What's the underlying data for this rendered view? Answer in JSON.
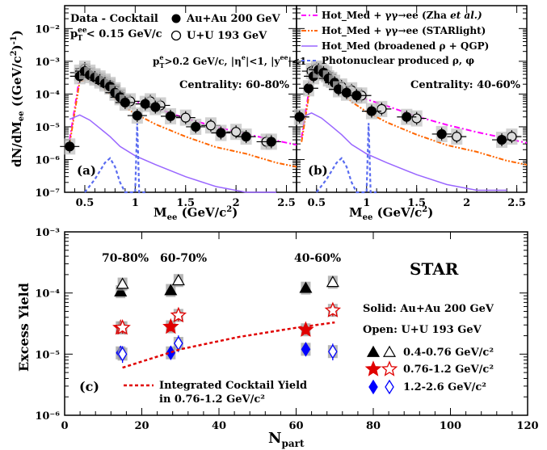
{
  "chart_data": [
    {
      "type": "scatter",
      "panel_label": "(a)",
      "xlabel_main": "M",
      "xlabel_sub": "ee",
      "xlabel_unit": " (GeV/c",
      "ylabel": "dN/dMee ((GeV/c²)⁻¹)",
      "xlim": [
        0.3,
        2.6
      ],
      "ylim": [
        1e-07,
        0.05
      ],
      "yscale": "log",
      "x_ticks": [
        "0.5",
        "1",
        "1.5",
        "2",
        "2.5"
      ],
      "y_ticks": [
        "10⁻⁷",
        "10⁻⁶",
        "10⁻⁵",
        "10⁻⁴",
        "10⁻³",
        "10⁻²"
      ],
      "legend": [
        {
          "marker": "filled-circle",
          "label": "Au+Au 200 GeV"
        },
        {
          "marker": "open-circle",
          "label": "U+U 193 GeV"
        }
      ],
      "header": "Data - Cocktail",
      "pt_cut": "p_T^ee < 0.15 GeV/c",
      "kin_cut": "p_T^e>0.2 GeV/c, |η^e|<1, |y^ee|<1",
      "centrality": "Centrality: 60-80%",
      "series": [
        {
          "name": "Au+Au 200 GeV",
          "x": [
            0.35,
            0.45,
            0.5,
            0.55,
            0.6,
            0.65,
            0.7,
            0.75,
            0.8,
            0.85,
            0.9,
            1.02,
            1.1,
            1.2,
            1.35,
            1.6,
            1.85,
            2.1,
            2.35
          ],
          "y": [
            2.5e-06,
            0.00035,
            0.0005,
            0.00038,
            0.00032,
            0.00026,
            0.00021,
            0.00017,
            0.00011,
            8e-05,
            5.5e-05,
            2.2e-05,
            5e-05,
            4e-05,
            2.1e-05,
            1e-05,
            6.5e-06,
            5e-06,
            3.5e-06
          ]
        },
        {
          "name": "U+U 193 GeV",
          "x": [
            0.45,
            0.5,
            0.55,
            0.6,
            0.65,
            0.7,
            0.75,
            0.8,
            0.85,
            0.95,
            1.15,
            1.25,
            1.5,
            1.75,
            2.0,
            2.3
          ],
          "y": [
            0.00045,
            0.0006,
            0.00045,
            0.00035,
            0.0003,
            0.00024,
            0.00019,
            0.00013,
            9e-05,
            6e-05,
            6e-05,
            4.5e-05,
            1.9e-05,
            1.1e-05,
            7e-06,
            3.5e-06
          ]
        },
        {
          "name": "Hot_Med + γγ→ee (Zha et al.)",
          "x": [
            0.35,
            0.45,
            0.55,
            0.65,
            0.75,
            0.85,
            1.0,
            1.2,
            1.5,
            1.8,
            2.1,
            2.4,
            2.6
          ],
          "y": [
            4e-06,
            0.00035,
            0.00036,
            0.00027,
            0.00017,
            0.0001,
            6e-05,
            3.8e-05,
            1.8e-05,
            1e-05,
            6e-06,
            3.8e-06,
            2.8e-06
          ]
        },
        {
          "name": "Hot_Med + γγ→ee (STARlight)",
          "x": [
            0.35,
            0.45,
            0.55,
            0.65,
            0.75,
            0.85,
            1.0,
            1.2,
            1.5,
            1.8,
            2.1,
            2.4,
            2.6
          ],
          "y": [
            3e-06,
            0.00025,
            0.00028,
            0.00018,
            0.0001,
            5e-05,
            2.5e-05,
            1.2e-05,
            5e-06,
            2.4e-06,
            1.5e-06,
            8e-07,
            6e-07
          ]
        },
        {
          "name": "Hot_Med (broadened ρ + QGP)",
          "x": [
            0.35,
            0.45,
            0.55,
            0.65,
            0.75,
            0.85,
            1.0,
            1.2,
            1.5,
            1.8,
            2.1,
            2.4
          ],
          "y": [
            1.7e-05,
            2.3e-05,
            1.6e-05,
            9e-06,
            5e-06,
            2.5e-06,
            1.3e-06,
            7e-07,
            3e-07,
            1.5e-07,
            1e-07,
            1e-07
          ]
        },
        {
          "name": "Photonuclear produced ρ, φ",
          "x": [
            0.5,
            0.6,
            0.7,
            0.75,
            0.8,
            0.85,
            0.9,
            1.0,
            1.02,
            1.04,
            1.1
          ],
          "y": [
            1e-07,
            2.5e-07,
            8e-07,
            1.1e-06,
            6e-07,
            2e-07,
            1e-07,
            1e-07,
            1.3e-05,
            1e-07,
            1e-07
          ]
        }
      ]
    },
    {
      "type": "scatter",
      "panel_label": "(b)",
      "centrality": "Centrality: 40-60%",
      "xlim": [
        0.3,
        2.6
      ],
      "ylim": [
        1e-07,
        0.05
      ],
      "yscale": "log",
      "x_ticks": [
        "0.5",
        "1",
        "1.5",
        "2",
        "2.5"
      ],
      "legend": [
        {
          "style": "magenta dash-dot",
          "label": "Hot_Med +  γγ→ee (Zha ",
          "label_italic": "et al.)"
        },
        {
          "style": "orange dash-dot-dot",
          "label": "Hot_Med +  γγ→ee (STARlight)"
        },
        {
          "style": "violet solid",
          "label": "Hot_Med (broadened  ρ + QGP)"
        },
        {
          "style": "blue dashed",
          "label": "Photonuclear produced ρ,  φ"
        }
      ],
      "series": [
        {
          "name": "Au+Au 200 GeV",
          "x": [
            0.33,
            0.42,
            0.47,
            0.52,
            0.57,
            0.62,
            0.68,
            0.72,
            0.8,
            0.9,
            1.05,
            1.4,
            1.75,
            2.35
          ],
          "y": [
            2e-05,
            0.00015,
            0.00035,
            0.00055,
            0.00045,
            0.0003,
            0.00022,
            0.00014,
            0.00011,
            9e-05,
            3e-05,
            2e-05,
            6e-06,
            4e-06
          ]
        },
        {
          "name": "U+U 193 GeV",
          "x": [
            0.45,
            0.5,
            0.55,
            0.6,
            0.65,
            0.75,
            0.85,
            0.95,
            1.15,
            1.5,
            1.9,
            2.45
          ],
          "y": [
            0.0005,
            0.0006,
            0.0005,
            0.0004,
            0.00027,
            0.00017,
            0.00013,
            9e-05,
            3.5e-05,
            1.8e-05,
            5e-06,
            5e-06
          ]
        }
      ]
    },
    {
      "type": "scatter",
      "panel_label": "(c)",
      "xlabel_main": "N",
      "xlabel_sub": "part",
      "ylabel": "Excess Yield",
      "xlim": [
        0,
        120
      ],
      "ylim": [
        1e-06,
        0.001
      ],
      "yscale": "log",
      "x_ticks": [
        "0",
        "20",
        "40",
        "60",
        "80",
        "100",
        "120"
      ],
      "y_ticks": [
        "10⁻⁶",
        "10⁻⁵",
        "10⁻⁴",
        "10⁻³"
      ],
      "top_labels": [
        "70-80%",
        "60-70%",
        "40-60%"
      ],
      "experiment": "STAR",
      "solid_note": "Solid: Au+Au 200 GeV",
      "open_note": "Open: U+U 193 GeV",
      "legend": [
        {
          "markers": "triangles",
          "label": "0.4-0.76 GeV/c²"
        },
        {
          "markers": "stars",
          "label": "0.76-1.2 GeV/c²"
        },
        {
          "markers": "diamonds",
          "label": "1.2-2.6  GeV/c²"
        }
      ],
      "cocktail_label_1": "Integrated Cocktail Yield",
      "cocktail_label_2": "in 0.76-1.2 GeV/c²",
      "series": [
        {
          "name": "0.4-0.76 GeV/c² Au+Au",
          "x": [
            14.5,
            27.5,
            62.5
          ],
          "y": [
            0.000105,
            0.00011,
            0.00012
          ]
        },
        {
          "name": "0.4-0.76 GeV/c² U+U",
          "x": [
            15,
            29.5,
            69.5
          ],
          "y": [
            0.00014,
            0.00016,
            0.00015
          ]
        },
        {
          "name": "0.76-1.2 GeV/c² Au+Au",
          "x": [
            14.5,
            27.5,
            62.5
          ],
          "y": [
            2.7e-05,
            2.8e-05,
            2.5e-05
          ]
        },
        {
          "name": "0.76-1.2 GeV/c² U+U",
          "x": [
            15,
            29.5,
            69.5
          ],
          "y": [
            2.7e-05,
            4.3e-05,
            5.2e-05
          ]
        },
        {
          "name": "1.2-2.6 GeV/c² Au+Au",
          "x": [
            14.5,
            27.5,
            62.5
          ],
          "y": [
            1.05e-05,
            1.05e-05,
            1.2e-05
          ]
        },
        {
          "name": "1.2-2.6 GeV/c² U+U",
          "x": [
            15,
            29.5,
            69.5
          ],
          "y": [
            1e-05,
            1.5e-05,
            1.1e-05
          ]
        },
        {
          "name": "Integrated Cocktail Yield",
          "x": [
            15,
            30,
            45,
            60,
            70
          ],
          "y": [
            6e-06,
            1.2e-05,
            1.9e-05,
            2.7e-05,
            3.3e-05
          ]
        }
      ]
    }
  ]
}
